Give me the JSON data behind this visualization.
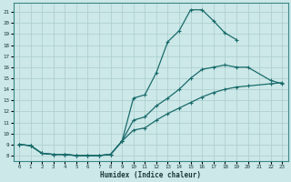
{
  "xlabel": "Humidex (Indice chaleur)",
  "bg_color": "#cce8e8",
  "grid_color": "#aacccc",
  "line_color": "#1a6b6b",
  "x_ticks": [
    0,
    1,
    2,
    3,
    4,
    5,
    6,
    7,
    8,
    9,
    10,
    11,
    12,
    13,
    14,
    15,
    16,
    17,
    18,
    19,
    20,
    21,
    22,
    23
  ],
  "y_ticks": [
    8,
    9,
    10,
    11,
    12,
    13,
    14,
    15,
    16,
    17,
    18,
    19,
    20,
    21
  ],
  "xlim": [
    -0.5,
    23.5
  ],
  "ylim": [
    7.5,
    21.8
  ],
  "line1_x": [
    0,
    1,
    2,
    3,
    4,
    5,
    6,
    7,
    8,
    9,
    10,
    11,
    12,
    13,
    14,
    15,
    16,
    17,
    18,
    19
  ],
  "line1_y": [
    9.0,
    8.9,
    8.2,
    8.1,
    8.1,
    8.0,
    8.0,
    8.0,
    8.1,
    9.3,
    13.2,
    13.5,
    15.5,
    18.3,
    19.3,
    21.2,
    21.2,
    20.2,
    19.1,
    18.5
  ],
  "line2_x": [
    0,
    1,
    2,
    3,
    4,
    5,
    6,
    7,
    8,
    9,
    10,
    11,
    12,
    13,
    14,
    15,
    16,
    17,
    18,
    19,
    20,
    22,
    23
  ],
  "line2_y": [
    9.0,
    8.9,
    8.2,
    8.1,
    8.1,
    8.0,
    8.0,
    8.0,
    8.1,
    9.3,
    11.2,
    11.5,
    12.5,
    13.2,
    14.0,
    15.0,
    15.8,
    16.0,
    16.2,
    16.0,
    16.0,
    14.8,
    14.5
  ],
  "line3_x": [
    0,
    1,
    2,
    3,
    4,
    5,
    6,
    7,
    8,
    9,
    10,
    11,
    12,
    13,
    14,
    15,
    16,
    17,
    18,
    19,
    20,
    22,
    23
  ],
  "line3_y": [
    9.0,
    8.9,
    8.2,
    8.1,
    8.1,
    8.0,
    8.0,
    8.0,
    8.1,
    9.3,
    10.3,
    10.5,
    11.2,
    11.8,
    12.3,
    12.8,
    13.3,
    13.7,
    14.0,
    14.2,
    14.3,
    14.5,
    14.6
  ]
}
